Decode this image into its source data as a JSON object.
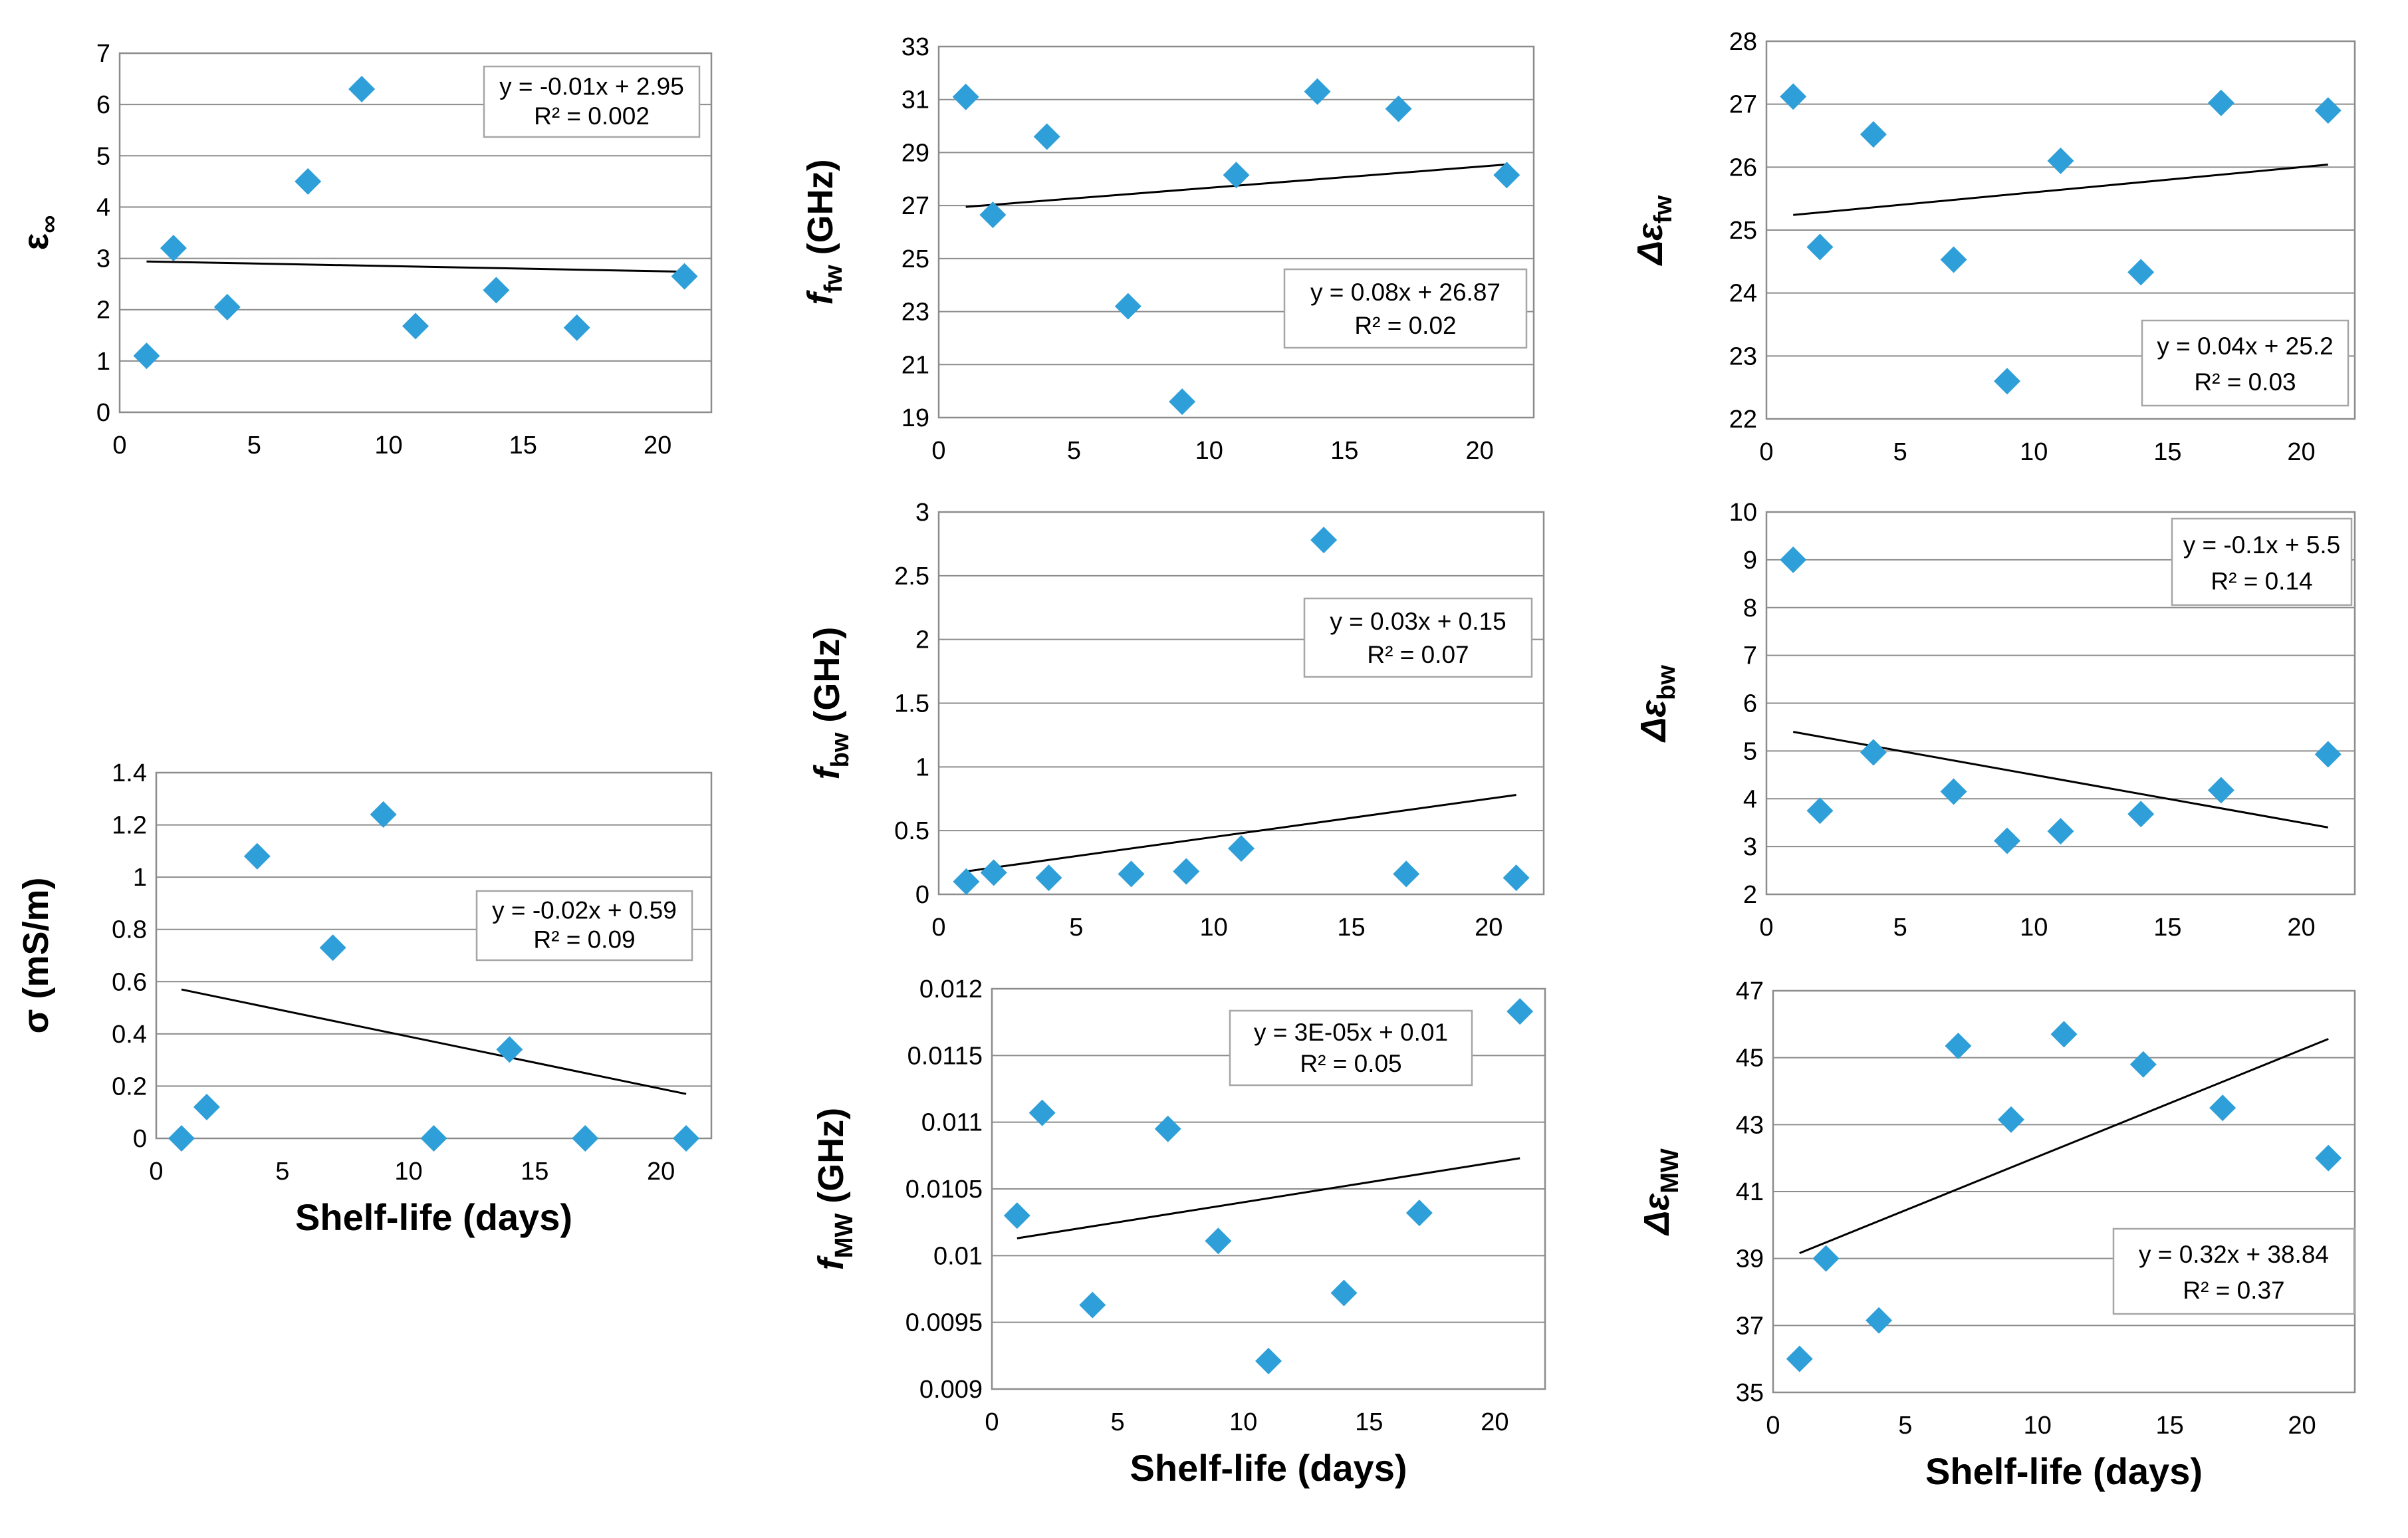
{
  "colors": {
    "marker": "#2E9FD8",
    "grid": "#8c8c8c",
    "plot_border": "#8c8c8c",
    "trend": "#000000",
    "box_border": "#a6a6a6"
  },
  "chart_data": [
    {
      "id": "einf",
      "type": "scatter",
      "ylabel_main": "ε",
      "ylabel_sub": "∞",
      "ylabel_italic": false,
      "xlabel": "",
      "xlim": [
        0,
        22
      ],
      "ylim": [
        0,
        7
      ],
      "xticks": [
        "0",
        "5",
        "10",
        "15",
        "20"
      ],
      "xtick_values": [
        0,
        5,
        10,
        15,
        20
      ],
      "yticks": [
        "0",
        "1",
        "2",
        "3",
        "4",
        "5",
        "6",
        "7"
      ],
      "ytick_values": [
        0,
        1,
        2,
        3,
        4,
        5,
        6,
        7
      ],
      "x": [
        1,
        2,
        4,
        7,
        9,
        11,
        14,
        17,
        21
      ],
      "y": [
        1.1,
        3.2,
        2.05,
        4.5,
        6.3,
        1.68,
        2.38,
        1.65,
        2.65
      ],
      "trend": {
        "slope": -0.01,
        "intercept": 2.95,
        "x0": 1,
        "x1": 21
      },
      "equation": "y = -0.01x + 2.95",
      "r2": "R² = 0.002",
      "legend_position": "top-right"
    },
    {
      "id": "ffw",
      "type": "scatter",
      "ylabel_main": "f",
      "ylabel_sub": "fw",
      "ylabel_suffix": " (GHz)",
      "ylabel_italic": true,
      "xlabel": "",
      "xlim": [
        0,
        22
      ],
      "ylim": [
        19,
        33
      ],
      "xticks": [
        "0",
        "5",
        "10",
        "15",
        "20"
      ],
      "xtick_values": [
        0,
        5,
        10,
        15,
        20
      ],
      "yticks": [
        "19",
        "21",
        "23",
        "25",
        "27",
        "29",
        "31",
        "33"
      ],
      "ytick_values": [
        19,
        21,
        23,
        25,
        27,
        29,
        31,
        33
      ],
      "x": [
        1,
        2,
        4,
        7,
        9,
        11,
        14,
        17,
        21
      ],
      "y": [
        31.1,
        26.65,
        29.6,
        23.2,
        19.6,
        28.15,
        31.3,
        30.65,
        28.15
      ],
      "trend": {
        "slope": 0.08,
        "intercept": 26.87,
        "x0": 1,
        "x1": 21
      },
      "equation": "y = 0.08x + 26.87",
      "r2": "R² = 0.02",
      "legend_position": "bottom-right"
    },
    {
      "id": "defw",
      "type": "scatter",
      "ylabel_main": "Δε",
      "ylabel_sub": "fw",
      "ylabel_italic": true,
      "xlabel": "",
      "xlim": [
        0,
        22
      ],
      "ylim": [
        22,
        28
      ],
      "xticks": [
        "0",
        "5",
        "10",
        "15",
        "20"
      ],
      "xtick_values": [
        0,
        5,
        10,
        15,
        20
      ],
      "yticks": [
        "22",
        "23",
        "24",
        "25",
        "26",
        "27",
        "28"
      ],
      "ytick_values": [
        22,
        23,
        24,
        25,
        26,
        27,
        28
      ],
      "x": [
        1,
        2,
        4,
        7,
        9,
        11,
        14,
        17,
        21
      ],
      "y": [
        27.12,
        24.73,
        26.52,
        24.53,
        22.6,
        26.1,
        24.33,
        27.02,
        26.9
      ],
      "trend": {
        "slope": 0.04,
        "intercept": 25.2,
        "x0": 1,
        "x1": 21
      },
      "equation": "y = 0.04x + 25.2",
      "r2": "R² = 0.03",
      "legend_position": "bottom-right"
    },
    {
      "id": "fbw",
      "type": "scatter",
      "ylabel_main": "f",
      "ylabel_sub": "bw",
      "ylabel_suffix": " (GHz)",
      "ylabel_italic": true,
      "xlabel": "",
      "xlim": [
        0,
        22
      ],
      "ylim": [
        0,
        3
      ],
      "xticks": [
        "0",
        "5",
        "10",
        "15",
        "20"
      ],
      "xtick_values": [
        0,
        5,
        10,
        15,
        20
      ],
      "yticks": [
        "0",
        "0.5",
        "1",
        "1.5",
        "2",
        "2.5",
        "3"
      ],
      "ytick_values": [
        0,
        0.5,
        1,
        1.5,
        2,
        2.5,
        3
      ],
      "x": [
        1,
        2,
        4,
        7,
        9,
        11,
        14,
        17,
        21
      ],
      "y": [
        0.1,
        0.17,
        0.13,
        0.16,
        0.18,
        0.36,
        2.78,
        0.16,
        0.13
      ],
      "trend": {
        "slope": 0.03,
        "intercept": 0.15,
        "x0": 1,
        "x1": 21
      },
      "equation": "y = 0.03x + 0.15",
      "r2": "R² = 0.07",
      "legend_position": "right"
    },
    {
      "id": "debw",
      "type": "scatter",
      "ylabel_main": "Δε",
      "ylabel_sub": "bw",
      "ylabel_italic": true,
      "xlabel": "",
      "xlim": [
        0,
        22
      ],
      "ylim": [
        2,
        10
      ],
      "xticks": [
        "0",
        "5",
        "10",
        "15",
        "20"
      ],
      "xtick_values": [
        0,
        5,
        10,
        15,
        20
      ],
      "yticks": [
        "2",
        "3",
        "4",
        "5",
        "6",
        "7",
        "8",
        "9",
        "10"
      ],
      "ytick_values": [
        2,
        3,
        4,
        5,
        6,
        7,
        8,
        9,
        10
      ],
      "x": [
        1,
        2,
        4,
        7,
        9,
        11,
        14,
        17,
        21
      ],
      "y": [
        9.0,
        3.75,
        4.97,
        4.15,
        3.12,
        3.32,
        3.68,
        4.18,
        4.93
      ],
      "trend": {
        "slope": -0.1,
        "intercept": 5.5,
        "x0": 1,
        "x1": 21
      },
      "equation": "y = -0.1x + 5.5",
      "r2": "R² = 0.14",
      "legend_position": "top-right"
    },
    {
      "id": "sigma",
      "type": "scatter",
      "ylabel_main": "σ",
      "ylabel_sub": "",
      "ylabel_suffix": " (mS/m)",
      "ylabel_italic": false,
      "xlabel": "Shelf-life (days)",
      "xlim": [
        0,
        22
      ],
      "ylim": [
        0,
        1.4
      ],
      "xticks": [
        "0",
        "5",
        "10",
        "15",
        "20"
      ],
      "xtick_values": [
        0,
        5,
        10,
        15,
        20
      ],
      "yticks": [
        "0",
        "0.2",
        "0.4",
        "0.6",
        "0.8",
        "1",
        "1.2",
        "1.4"
      ],
      "ytick_values": [
        0,
        0.2,
        0.4,
        0.6,
        0.8,
        1,
        1.2,
        1.4
      ],
      "x": [
        1,
        2,
        4,
        7,
        9,
        11,
        14,
        17,
        21
      ],
      "y": [
        0.0,
        0.12,
        1.08,
        0.73,
        1.24,
        0.0,
        0.34,
        0.0,
        0.0
      ],
      "trend": {
        "slope": -0.02,
        "intercept": 0.59,
        "x0": 1,
        "x1": 21
      },
      "equation": "y = -0.02x + 0.59",
      "r2": "R² = 0.09",
      "legend_position": "right"
    },
    {
      "id": "fmw",
      "type": "scatter",
      "ylabel_main": "f",
      "ylabel_sub": "MW",
      "ylabel_suffix": " (GHz)",
      "ylabel_italic": true,
      "xlabel": "Shelf-life (days)",
      "xlim": [
        0,
        22
      ],
      "ylim": [
        0.009,
        0.012
      ],
      "xticks": [
        "0",
        "5",
        "10",
        "15",
        "20"
      ],
      "xtick_values": [
        0,
        5,
        10,
        15,
        20
      ],
      "yticks": [
        "0.009",
        "0.0095",
        "0.01",
        "0.0105",
        "0.011",
        "0.0115",
        "0.012"
      ],
      "ytick_values": [
        0.009,
        0.0095,
        0.01,
        0.0105,
        0.011,
        0.0115,
        0.012
      ],
      "x": [
        1,
        2,
        4,
        7,
        9,
        11,
        14,
        17,
        21
      ],
      "y": [
        0.0103,
        0.01107,
        0.00963,
        0.01095,
        0.01011,
        0.00921,
        0.00972,
        0.01032,
        0.01183
      ],
      "trend": {
        "slope": 3e-05,
        "intercept": 0.0101,
        "x0": 1,
        "x1": 21
      },
      "equation": "y = 3E-05x + 0.01",
      "r2": "R² = 0.05",
      "legend_position": "top-right"
    },
    {
      "id": "demw",
      "type": "scatter",
      "ylabel_main": "Δε",
      "ylabel_sub": "MW",
      "ylabel_italic": true,
      "xlabel": "Shelf-life (days)",
      "xlim": [
        0,
        22
      ],
      "ylim": [
        35,
        47
      ],
      "xticks": [
        "0",
        "5",
        "10",
        "15",
        "20"
      ],
      "xtick_values": [
        0,
        5,
        10,
        15,
        20
      ],
      "yticks": [
        "35",
        "37",
        "39",
        "41",
        "43",
        "45",
        "47"
      ],
      "ytick_values": [
        35,
        37,
        39,
        41,
        43,
        45,
        47
      ],
      "x": [
        1,
        2,
        4,
        7,
        9,
        11,
        14,
        17,
        21
      ],
      "y": [
        36.0,
        39.0,
        37.15,
        45.35,
        43.15,
        45.7,
        44.8,
        43.5,
        42.0
      ],
      "trend": {
        "slope": 0.32,
        "intercept": 38.84,
        "x0": 1,
        "x1": 21
      },
      "equation": "y = 0.32x + 38.84",
      "r2": "R² = 0.37",
      "legend_position": "bottom-right"
    }
  ]
}
